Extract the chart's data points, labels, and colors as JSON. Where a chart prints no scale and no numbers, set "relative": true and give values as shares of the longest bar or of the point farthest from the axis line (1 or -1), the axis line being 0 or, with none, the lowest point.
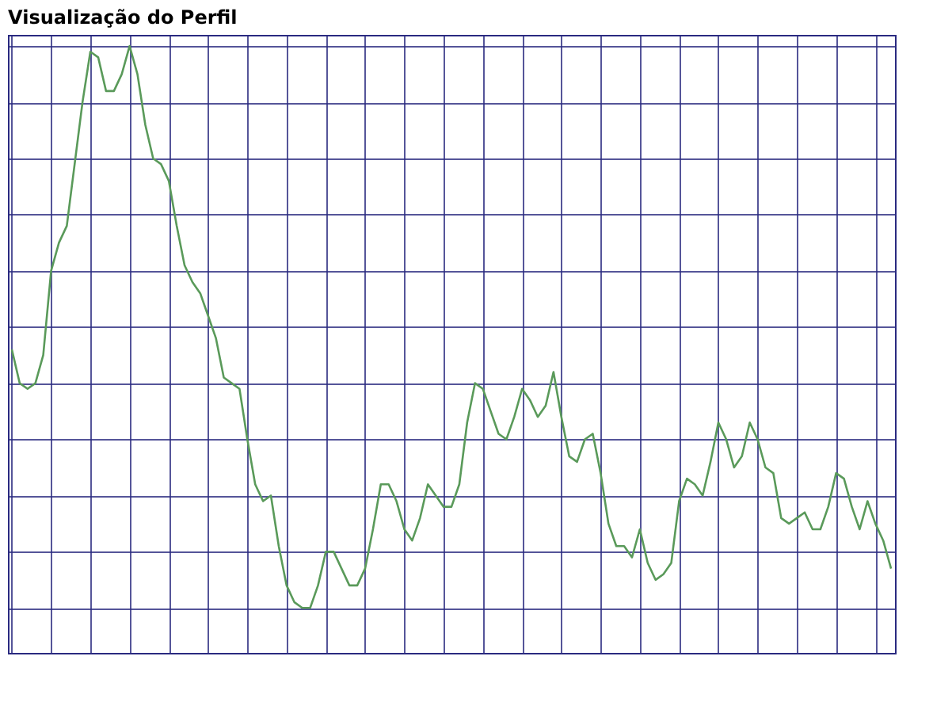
{
  "chart_data": {
    "type": "line",
    "title": "Visualização do Perfil",
    "relative": true,
    "grid": true,
    "marker": "none",
    "line_style": "solid",
    "categories": [
      null,
      null,
      null,
      null,
      null,
      null,
      null,
      null,
      null,
      null,
      null,
      null,
      null,
      null,
      null,
      null,
      null,
      null,
      null,
      null,
      null,
      null,
      null,
      null,
      null,
      null,
      null,
      null,
      null,
      null,
      null,
      null,
      null,
      null,
      null,
      null,
      null,
      null,
      null,
      null,
      null,
      null,
      null,
      null,
      null,
      null,
      null,
      null,
      null,
      null,
      null,
      null,
      null,
      null,
      null,
      null,
      null,
      null,
      null,
      null,
      null,
      null,
      null,
      null,
      null,
      null,
      null,
      null,
      null,
      null,
      null,
      null,
      null,
      null,
      null,
      null,
      null,
      null,
      null,
      null,
      null,
      null,
      null,
      null,
      null,
      null,
      null,
      null,
      null,
      null,
      null,
      null,
      null,
      null,
      null,
      null,
      null,
      null,
      null,
      null,
      null,
      null,
      null,
      null,
      null,
      null,
      null,
      null,
      null,
      null,
      null,
      null,
      null
    ],
    "series": [
      {
        "color": "#5a9a5a",
        "values": [
          0.46,
          0.4,
          0.39,
          0.4,
          0.45,
          0.6,
          0.65,
          0.68,
          0.79,
          0.9,
          0.99,
          0.98,
          0.92,
          0.92,
          0.95,
          1,
          0.95,
          0.86,
          0.8,
          0.79,
          0.76,
          0.68,
          0.61,
          0.58,
          0.56,
          0.52,
          0.48,
          0.41,
          0.4,
          0.39,
          0.3,
          0.22,
          0.19,
          0.2,
          0.11,
          0.04,
          0.01,
          0,
          0,
          0.04,
          0.1,
          0.1,
          0.07,
          0.04,
          0.04,
          0.07,
          0.14,
          0.22,
          0.22,
          0.19,
          0.14,
          0.12,
          0.16,
          0.22,
          0.2,
          0.18,
          0.18,
          0.22,
          0.33,
          0.4,
          0.39,
          0.35,
          0.31,
          0.3,
          0.34,
          0.39,
          0.37,
          0.34,
          0.36,
          0.42,
          0.34,
          0.27,
          0.26,
          0.3,
          0.31,
          0.24,
          0.15,
          0.11,
          0.11,
          0.09,
          0.14,
          0.08,
          0.05,
          0.06,
          0.08,
          0.19,
          0.23,
          0.22,
          0.2,
          0.26,
          0.33,
          0.3,
          0.25,
          0.27,
          0.33,
          0.3,
          0.25,
          0.24,
          0.16,
          0.15,
          0.16,
          0.17,
          0.14,
          0.14,
          0.18,
          0.24,
          0.23,
          0.18,
          0.14,
          0.19,
          0.15,
          0.12,
          0.07
        ]
      }
    ]
  }
}
